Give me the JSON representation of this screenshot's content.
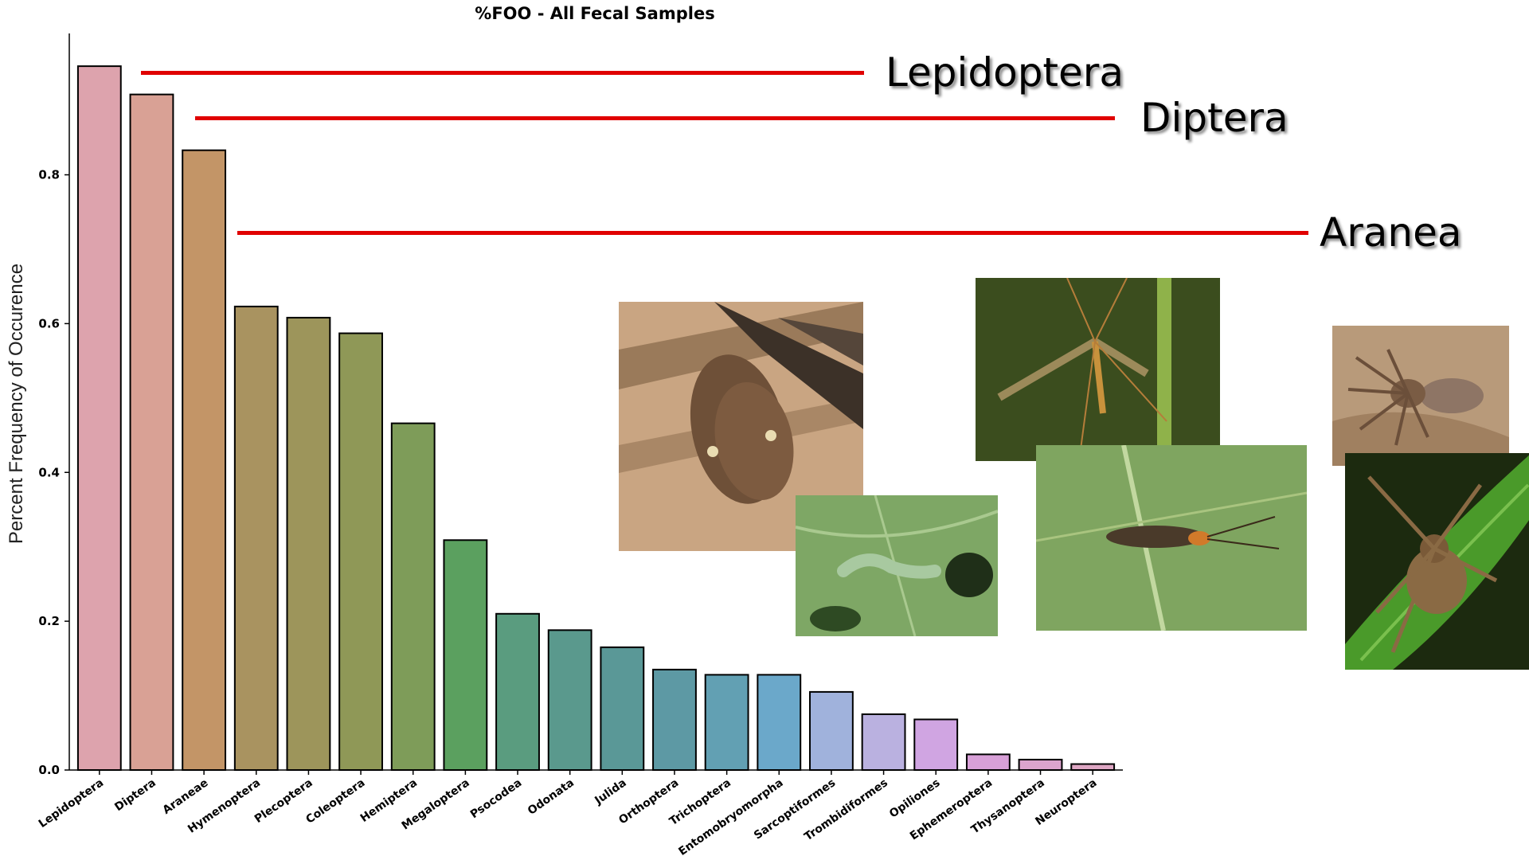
{
  "chart_data": {
    "type": "bar",
    "title": "%FOO - All Fecal Samples",
    "ylabel": "Percent Frequency of Occurence",
    "xlabel": "",
    "ylim": [
      0,
      0.99
    ],
    "yticks": [
      "0.0",
      "0.2",
      "0.4",
      "0.6",
      "0.8"
    ],
    "grid": false,
    "categories": [
      "Lepidoptera",
      "Diptera",
      "Araneae",
      "Hymenoptera",
      "Plecoptera",
      "Coleoptera",
      "Hemiptera",
      "Megaloptera",
      "Psocodea",
      "Odonata",
      "Julida",
      "Orthoptera",
      "Trichoptera",
      "Entomobryomorpha",
      "Sarcoptiformes",
      "Trombidiformes",
      "Opiliones",
      "Ephemeroptera",
      "Thysanoptera",
      "Neuroptera"
    ],
    "values": [
      0.946,
      0.908,
      0.833,
      0.623,
      0.608,
      0.587,
      0.466,
      0.309,
      0.21,
      0.188,
      0.165,
      0.135,
      0.128,
      0.128,
      0.105,
      0.075,
      0.068,
      0.021,
      0.014,
      0.008
    ],
    "colors": [
      "#dda3ad",
      "#d9a195",
      "#c39567",
      "#a99360",
      "#9d955b",
      "#8f9857",
      "#7e9c59",
      "#5ba05f",
      "#5a9c7f",
      "#5a998d",
      "#5a9897",
      "#5d99a4",
      "#62a0b3",
      "#6ba8ca",
      "#a0b2dc",
      "#bab1e0",
      "#d0a5e2",
      "#d8a0d8",
      "#dca4cd",
      "#dda6c3"
    ]
  },
  "annotations": [
    {
      "label": "Lepidoptera"
    },
    {
      "label": "Diptera"
    },
    {
      "label": "Aranea"
    }
  ],
  "photos": [
    {
      "name": "moth-photo-icon"
    },
    {
      "name": "caterpillar-photo-icon"
    },
    {
      "name": "crane-fly-photo-icon"
    },
    {
      "name": "fly-on-leaf-photo-icon"
    },
    {
      "name": "spider-photo-icon"
    },
    {
      "name": "crab-spider-photo-icon"
    }
  ]
}
